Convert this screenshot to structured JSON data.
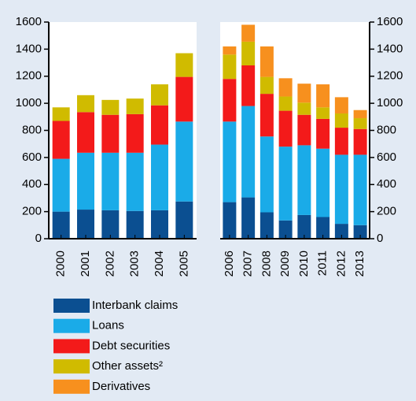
{
  "chart_data": [
    {
      "type": "bar",
      "stacked": true,
      "axis_side": "left",
      "categories": [
        "2000",
        "2001",
        "2002",
        "2003",
        "2004",
        "2005"
      ],
      "ylim": [
        0,
        1600
      ],
      "yticks": [
        0,
        200,
        400,
        600,
        800,
        1000,
        1200,
        1400,
        1600
      ],
      "series": [
        {
          "name": "Interbank claims",
          "color": "#0b4f91",
          "values": [
            200,
            215,
            210,
            205,
            210,
            275
          ]
        },
        {
          "name": "Loans",
          "color": "#1aabe8",
          "values": [
            390,
            420,
            425,
            430,
            485,
            590
          ]
        },
        {
          "name": "Debt securities",
          "color": "#f31a1a",
          "values": [
            280,
            300,
            280,
            285,
            290,
            330
          ]
        },
        {
          "name": "Other assets²",
          "color": "#d0bb00",
          "values": [
            100,
            125,
            110,
            115,
            155,
            175
          ]
        },
        {
          "name": "Derivatives",
          "color": "#f7901e",
          "values": [
            0,
            0,
            0,
            0,
            0,
            0
          ]
        }
      ]
    },
    {
      "type": "bar",
      "stacked": true,
      "axis_side": "right",
      "categories": [
        "2006",
        "2007",
        "2008",
        "2009",
        "2010",
        "2011",
        "2012",
        "2013"
      ],
      "ylim": [
        0,
        1600
      ],
      "yticks": [
        0,
        200,
        400,
        600,
        800,
        1000,
        1200,
        1400,
        1600
      ],
      "series": [
        {
          "color": "#0b4f91",
          "values": [
            270,
            305,
            195,
            135,
            175,
            160,
            110,
            100
          ]
        },
        {
          "color": "#1aabe8",
          "values": [
            595,
            675,
            560,
            545,
            515,
            505,
            510,
            520
          ]
        },
        {
          "color": "#f31a1a",
          "values": [
            315,
            300,
            315,
            265,
            225,
            220,
            200,
            190
          ]
        },
        {
          "color": "#d0bb00",
          "values": [
            180,
            175,
            125,
            105,
            90,
            85,
            105,
            80
          ]
        },
        {
          "color": "#f7901e",
          "values": [
            60,
            125,
            225,
            135,
            140,
            170,
            120,
            60
          ]
        }
      ]
    }
  ]
}
